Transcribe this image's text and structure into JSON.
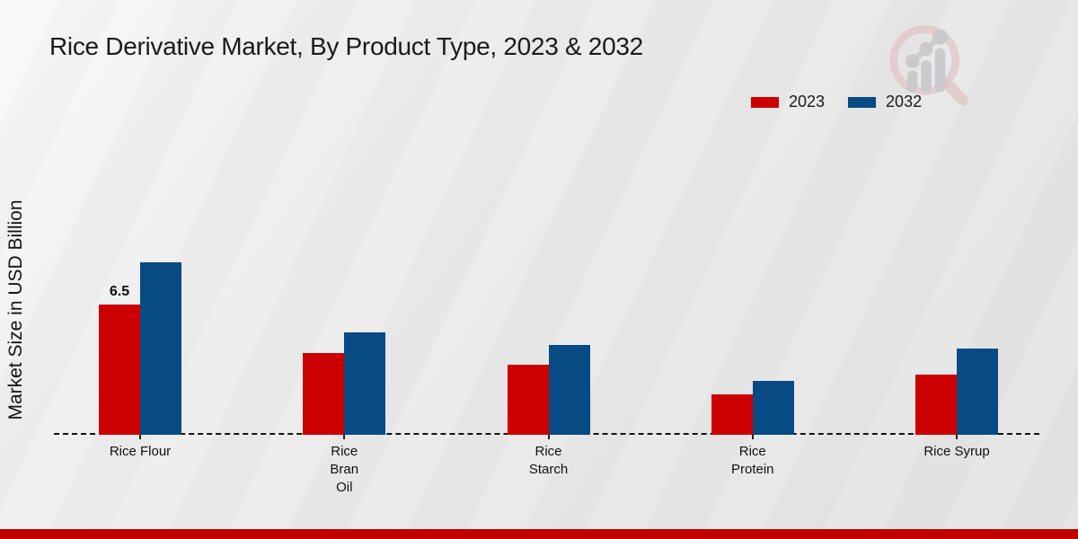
{
  "title": "Rice Derivative Market, By Product Type, 2023 & 2032",
  "ylabel": "Market Size in USD Billion",
  "legend": [
    {
      "label": "2023",
      "color": "#cc0000"
    },
    {
      "label": "2032",
      "color": "#074a84"
    }
  ],
  "watermark": {
    "icon": "magnifier-bar-chart-logo"
  },
  "footer": {
    "bar_color": "#c00000"
  },
  "chart_data": {
    "type": "bar",
    "title": "Rice Derivative Market, By Product Type, 2023 & 2032",
    "ylabel": "Market Size in USD Billion",
    "unit": "USD Billion",
    "categories": [
      "Rice Flour",
      "Rice Bran Oil",
      "Rice Starch",
      "Rice Protein",
      "Rice Syrup"
    ],
    "tick_label_lines": [
      [
        "Rice Flour"
      ],
      [
        "Rice",
        "Bran",
        "Oil"
      ],
      [
        "Rice",
        "Starch"
      ],
      [
        "Rice",
        "Protein"
      ],
      [
        "Rice Syrup"
      ]
    ],
    "series": [
      {
        "name": "2023",
        "color": "#cc0000",
        "values": [
          6.5,
          4.1,
          3.5,
          2.0,
          3.0
        ]
      },
      {
        "name": "2032",
        "color": "#074a84",
        "values": [
          8.6,
          5.1,
          4.5,
          2.7,
          4.3
        ]
      }
    ],
    "annotations": [
      {
        "category": "Rice Flour",
        "series": "2023",
        "text": "6.5"
      }
    ],
    "ylim": [
      0,
      10
    ],
    "grid": false,
    "legend_position": "top-right",
    "baseline_style": "dashed"
  }
}
